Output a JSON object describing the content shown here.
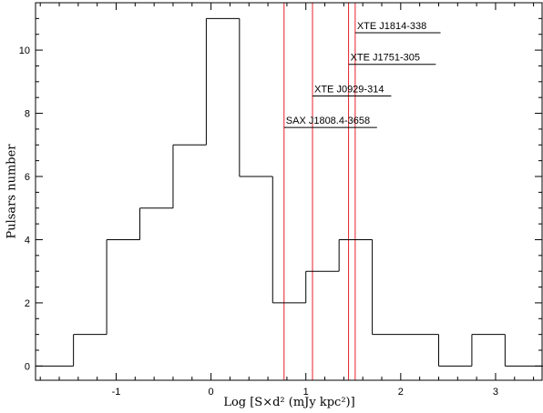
{
  "chart_data": {
    "type": "histogram",
    "title": "",
    "xlabel": "Log [S×d² (mJy kpc²)]",
    "ylabel": "Pulsars number",
    "xlim": [
      -1.85,
      3.5
    ],
    "ylim": [
      -0.45,
      11.5
    ],
    "xticks": [
      -1,
      0,
      1,
      2,
      3
    ],
    "yticks": [
      0,
      2,
      4,
      6,
      8,
      10
    ],
    "xtick_labels": [
      "-1",
      "0",
      "1",
      "2",
      "3"
    ],
    "ytick_labels": [
      "0",
      "2",
      "4",
      "6",
      "8",
      "10"
    ],
    "bins": {
      "edges": [
        -1.85,
        -1.45,
        -1.1,
        -0.75,
        -0.4,
        -0.05,
        0.3,
        0.65,
        1.0,
        1.35,
        1.7,
        2.05,
        2.4,
        2.75,
        3.1,
        3.5
      ],
      "counts": [
        0,
        1,
        4,
        5,
        7,
        11,
        6,
        2,
        3,
        4,
        1,
        1,
        0,
        1,
        0
      ]
    },
    "reference_lines": [
      {
        "label": "SAX J1808.4-3658",
        "x": 0.77,
        "label_y": 7.55,
        "label_end_x": 1.75
      },
      {
        "label": "XTE J0929-314",
        "x": 1.07,
        "label_y": 8.55,
        "label_end_x": 1.9
      },
      {
        "label": "XTE J1751-305",
        "x": 1.45,
        "label_y": 9.55,
        "label_end_x": 2.37
      },
      {
        "label": "XTE J1814-338",
        "x": 1.52,
        "label_y": 10.55,
        "label_end_x": 2.42
      }
    ],
    "colors": {
      "histogram": "#000000",
      "reference_lines": "#e8202a",
      "frame": "#000000"
    }
  }
}
